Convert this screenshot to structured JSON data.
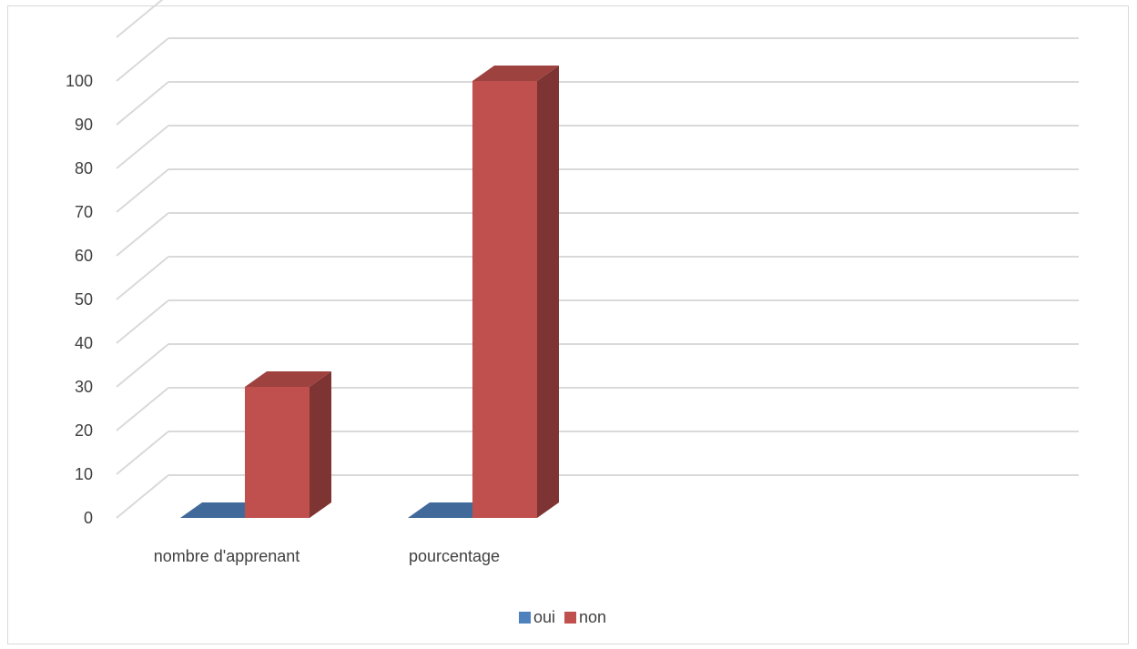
{
  "chart_data": {
    "type": "bar",
    "style": "3d-clustered-column",
    "title": "",
    "xlabel": "",
    "ylabel": "",
    "ylim": [
      0,
      100
    ],
    "ytick_step": 10,
    "categories": [
      "nombre d'apprenant",
      "pourcentage"
    ],
    "series": [
      {
        "name": "oui",
        "values": [
          0,
          0
        ],
        "color": "#4f81bd"
      },
      {
        "name": "non",
        "values": [
          30,
          100
        ],
        "color": "#c0504d"
      }
    ],
    "grid": true,
    "legend_position": "bottom"
  }
}
